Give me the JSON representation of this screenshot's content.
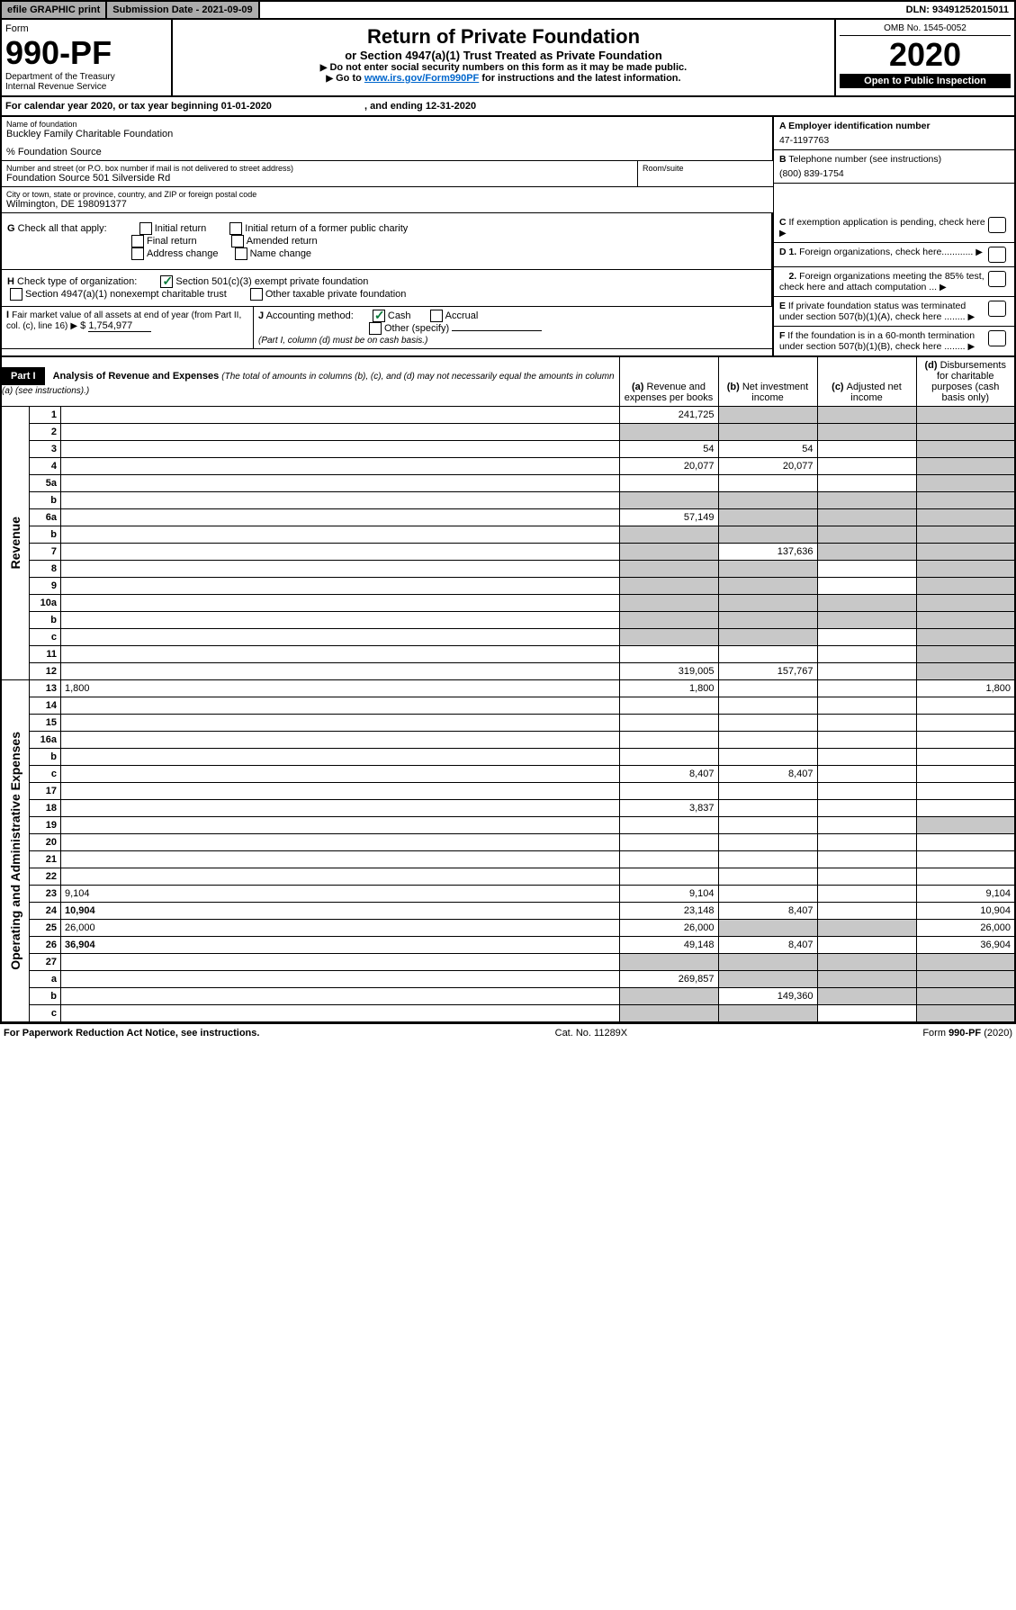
{
  "topbar": {
    "efile": "efile GRAPHIC print",
    "subdate_label": "Submission Date - ",
    "subdate": "2021-09-09",
    "dln_label": "DLN: ",
    "dln": "93491252015011"
  },
  "header": {
    "form_label": "Form",
    "form_num": "990-PF",
    "dept": "Department of the Treasury",
    "irs": "Internal Revenue Service",
    "title": "Return of Private Foundation",
    "subtitle": "or Section 4947(a)(1) Trust Treated as Private Foundation",
    "instr1": "Do not enter social security numbers on this form as it may be made public.",
    "instr2_pre": "Go to ",
    "instr2_link": "www.irs.gov/Form990PF",
    "instr2_post": " for instructions and the latest information.",
    "omb": "OMB No. 1545-0052",
    "year": "2020",
    "open": "Open to Public Inspection"
  },
  "calyear": {
    "pre": "For calendar year 2020, or tax year beginning ",
    "begin": "01-01-2020",
    "mid": ", and ending ",
    "end": "12-31-2020"
  },
  "id": {
    "name_label": "Name of foundation",
    "name": "Buckley Family Charitable Foundation",
    "care": "% Foundation Source",
    "street_label": "Number and street (or P.O. box number if mail is not delivered to street address)",
    "street": "Foundation Source 501 Silverside Rd",
    "room_label": "Room/suite",
    "city_label": "City or town, state or province, country, and ZIP or foreign postal code",
    "city": "Wilmington, DE  198091377",
    "a_label": "A Employer identification number",
    "a_val": "47-1197763",
    "b_label": "B",
    "b_text": "Telephone number (see instructions)",
    "b_val": "(800) 839-1754",
    "c_text": "If exemption application is pending, check here",
    "d1": "Foreign organizations, check here............",
    "d2": "Foreign organizations meeting the 85% test, check here and attach computation ...",
    "e_text": "If private foundation status was terminated under section 507(b)(1)(A), check here ........",
    "f_text": "If the foundation is in a 60-month termination under section 507(b)(1)(B), check here ........"
  },
  "g": {
    "label": "G",
    "text": "Check all that apply:",
    "initial": "Initial return",
    "initial_former": "Initial return of a former public charity",
    "final": "Final return",
    "amended": "Amended return",
    "addr": "Address change",
    "name": "Name change"
  },
  "h": {
    "label": "H",
    "text": "Check type of organization:",
    "c3": "Section 501(c)(3) exempt private foundation",
    "trust": "Section 4947(a)(1) nonexempt charitable trust",
    "other": "Other taxable private foundation"
  },
  "i": {
    "label": "I",
    "text": "Fair market value of all assets at end of year (from Part II, col. (c), line 16)",
    "val": "1,754,977"
  },
  "j": {
    "label": "J",
    "text": "Accounting method:",
    "cash": "Cash",
    "accrual": "Accrual",
    "other": "Other (specify)",
    "note": "(Part I, column (d) must be on cash basis.)"
  },
  "part1": {
    "label": "Part I",
    "title": "Analysis of Revenue and Expenses",
    "note": "(The total of amounts in columns (b), (c), and (d) may not necessarily equal the amounts in column (a) (see instructions).)",
    "col_a": "Revenue and expenses per books",
    "col_b": "Net investment income",
    "col_c": "Adjusted net income",
    "col_d": "Disbursements for charitable purposes (cash basis only)"
  },
  "sections": {
    "rev": "Revenue",
    "exp": "Operating and Administrative Expenses"
  },
  "rows": [
    {
      "n": "1",
      "d": "",
      "a": "241,725",
      "b": "",
      "c": "",
      "grey": [
        "b",
        "c",
        "d"
      ]
    },
    {
      "n": "2",
      "d": "",
      "a": "",
      "b": "",
      "c": "",
      "grey": [
        "a",
        "b",
        "c",
        "d"
      ]
    },
    {
      "n": "3",
      "d": "",
      "a": "54",
      "b": "54",
      "c": "",
      "grey": [
        "d"
      ]
    },
    {
      "n": "4",
      "d": "",
      "a": "20,077",
      "b": "20,077",
      "c": "",
      "grey": [
        "d"
      ]
    },
    {
      "n": "5a",
      "d": "",
      "a": "",
      "b": "",
      "c": "",
      "grey": [
        "d"
      ]
    },
    {
      "n": "b",
      "d": "",
      "a": "",
      "b": "",
      "c": "",
      "grey": [
        "a",
        "b",
        "c",
        "d"
      ]
    },
    {
      "n": "6a",
      "d": "",
      "a": "57,149",
      "b": "",
      "c": "",
      "grey": [
        "b",
        "c",
        "d"
      ]
    },
    {
      "n": "b",
      "d": "",
      "a": "",
      "b": "",
      "c": "",
      "grey": [
        "a",
        "b",
        "c",
        "d"
      ]
    },
    {
      "n": "7",
      "d": "",
      "a": "",
      "b": "137,636",
      "c": "",
      "grey": [
        "a",
        "c",
        "d"
      ]
    },
    {
      "n": "8",
      "d": "",
      "a": "",
      "b": "",
      "c": "",
      "grey": [
        "a",
        "b",
        "d"
      ]
    },
    {
      "n": "9",
      "d": "",
      "a": "",
      "b": "",
      "c": "",
      "grey": [
        "a",
        "b",
        "d"
      ]
    },
    {
      "n": "10a",
      "d": "",
      "a": "",
      "b": "",
      "c": "",
      "grey": [
        "a",
        "b",
        "c",
        "d"
      ]
    },
    {
      "n": "b",
      "d": "",
      "a": "",
      "b": "",
      "c": "",
      "grey": [
        "a",
        "b",
        "c",
        "d"
      ]
    },
    {
      "n": "c",
      "d": "",
      "a": "",
      "b": "",
      "c": "",
      "grey": [
        "a",
        "b",
        "d"
      ]
    },
    {
      "n": "11",
      "d": "",
      "a": "",
      "b": "",
      "c": "",
      "grey": [
        "d"
      ]
    },
    {
      "n": "12",
      "d": "",
      "a": "319,005",
      "b": "157,767",
      "c": "",
      "grey": [
        "d"
      ],
      "bold": true
    }
  ],
  "exp_rows": [
    {
      "n": "13",
      "d": "1,800",
      "a": "1,800",
      "b": "",
      "c": ""
    },
    {
      "n": "14",
      "d": "",
      "a": "",
      "b": "",
      "c": ""
    },
    {
      "n": "15",
      "d": "",
      "a": "",
      "b": "",
      "c": ""
    },
    {
      "n": "16a",
      "d": "",
      "a": "",
      "b": "",
      "c": ""
    },
    {
      "n": "b",
      "d": "",
      "a": "",
      "b": "",
      "c": ""
    },
    {
      "n": "c",
      "d": "",
      "a": "8,407",
      "b": "8,407",
      "c": ""
    },
    {
      "n": "17",
      "d": "",
      "a": "",
      "b": "",
      "c": ""
    },
    {
      "n": "18",
      "d": "",
      "a": "3,837",
      "b": "",
      "c": ""
    },
    {
      "n": "19",
      "d": "",
      "a": "",
      "b": "",
      "c": "",
      "grey": [
        "d"
      ]
    },
    {
      "n": "20",
      "d": "",
      "a": "",
      "b": "",
      "c": ""
    },
    {
      "n": "21",
      "d": "",
      "a": "",
      "b": "",
      "c": ""
    },
    {
      "n": "22",
      "d": "",
      "a": "",
      "b": "",
      "c": ""
    },
    {
      "n": "23",
      "d": "9,104",
      "a": "9,104",
      "b": "",
      "c": ""
    },
    {
      "n": "24",
      "d": "10,904",
      "a": "23,148",
      "b": "8,407",
      "c": "",
      "bold": true
    },
    {
      "n": "25",
      "d": "26,000",
      "a": "26,000",
      "b": "",
      "c": "",
      "grey": [
        "b",
        "c"
      ]
    },
    {
      "n": "26",
      "d": "36,904",
      "a": "49,148",
      "b": "8,407",
      "c": "",
      "bold": true
    },
    {
      "n": "27",
      "d": "",
      "a": "",
      "b": "",
      "c": "",
      "grey": [
        "a",
        "b",
        "c",
        "d"
      ]
    },
    {
      "n": "a",
      "d": "",
      "a": "269,857",
      "b": "",
      "c": "",
      "grey": [
        "b",
        "c",
        "d"
      ],
      "bold": true
    },
    {
      "n": "b",
      "d": "",
      "a": "",
      "b": "149,360",
      "c": "",
      "grey": [
        "a",
        "c",
        "d"
      ],
      "bold": true
    },
    {
      "n": "c",
      "d": "",
      "a": "",
      "b": "",
      "c": "",
      "grey": [
        "a",
        "b",
        "d"
      ],
      "bold": true
    }
  ],
  "footer": {
    "left": "For Paperwork Reduction Act Notice, see instructions.",
    "mid": "Cat. No. 11289X",
    "right": "Form 990-PF (2020)"
  }
}
